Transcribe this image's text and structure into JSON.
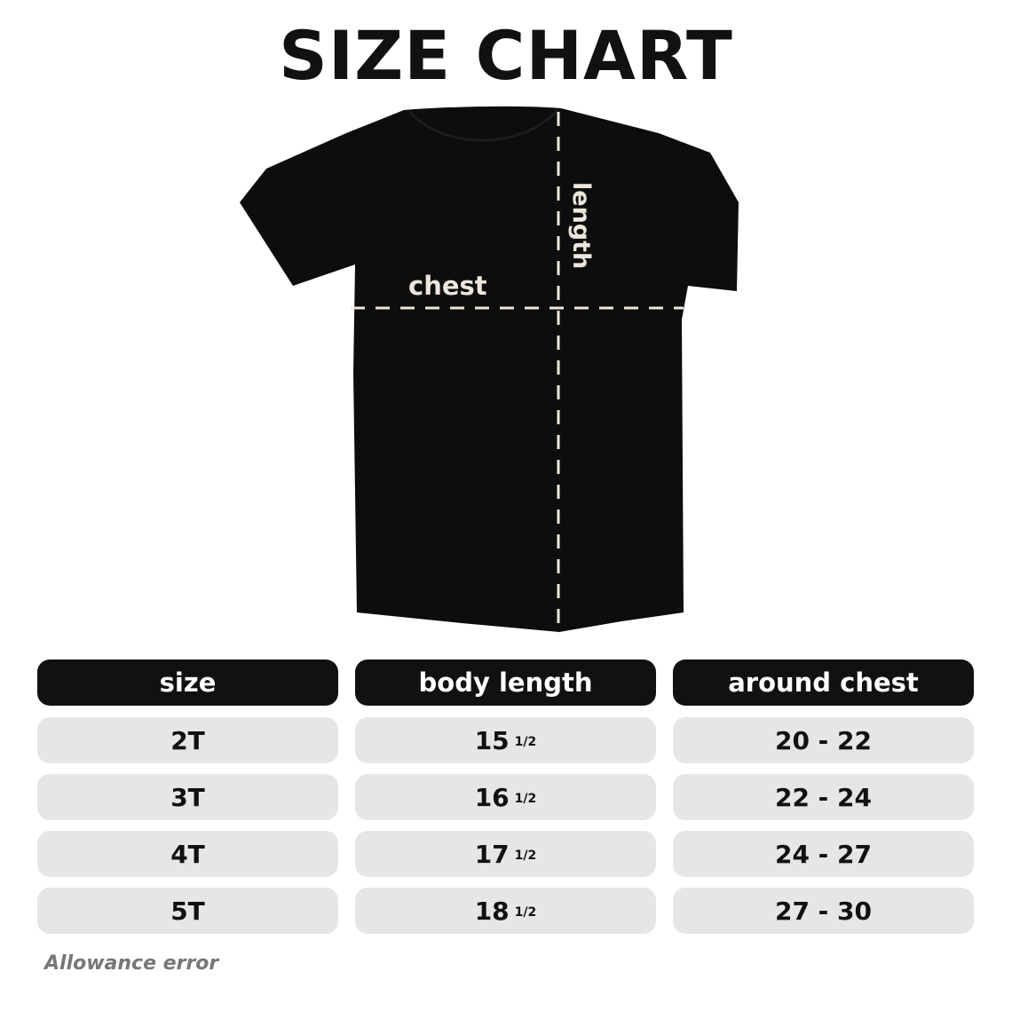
{
  "title": "SIZE CHART",
  "diagram": {
    "chest_label": "chest",
    "length_label": "length",
    "shirt_color": "#0d0d0d",
    "guide_color": "#ece6dc"
  },
  "table": {
    "headers": [
      "size",
      "body length",
      "around chest"
    ],
    "rows": [
      {
        "size": "2T",
        "length_whole": "15",
        "length_frac": "1/2",
        "chest": "20 - 22"
      },
      {
        "size": "3T",
        "length_whole": "16",
        "length_frac": "1/2",
        "chest": "22 - 24"
      },
      {
        "size": "4T",
        "length_whole": "17",
        "length_frac": "1/2",
        "chest": "24 - 27"
      },
      {
        "size": "5T",
        "length_whole": "18",
        "length_frac": "1/2",
        "chest": "27 - 30"
      }
    ]
  },
  "note": "Allowance error"
}
